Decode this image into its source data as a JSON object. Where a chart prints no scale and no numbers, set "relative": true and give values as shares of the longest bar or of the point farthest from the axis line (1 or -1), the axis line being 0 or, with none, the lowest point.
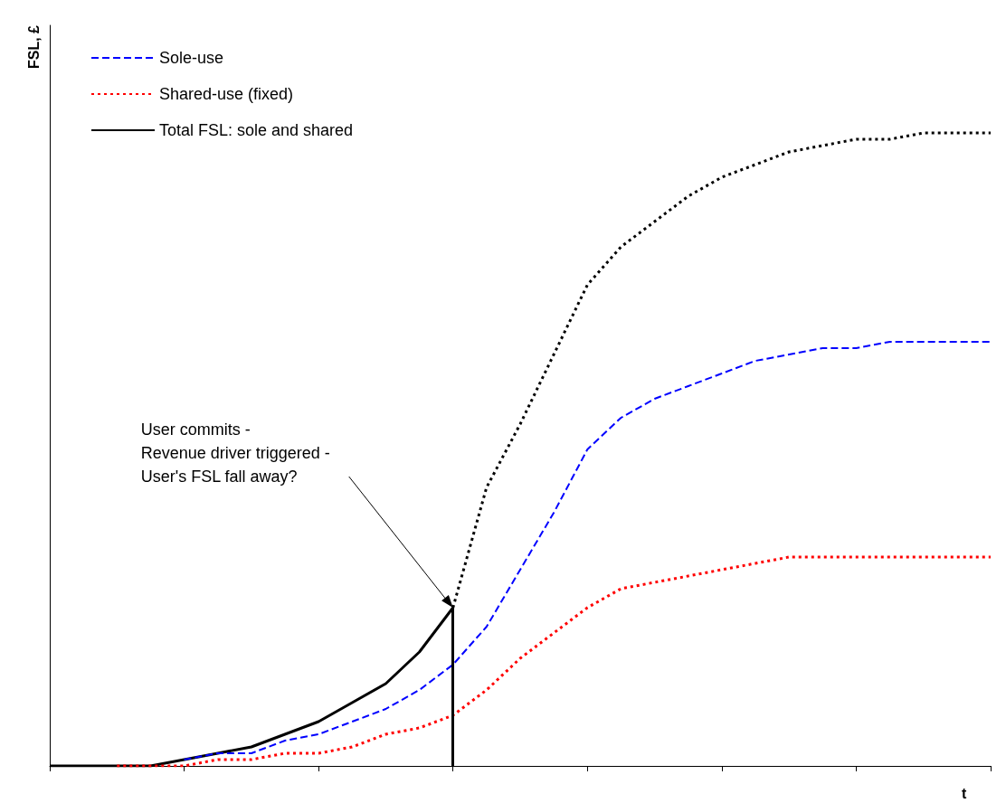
{
  "chart_data": {
    "type": "line",
    "relative": true,
    "xlabel": "t",
    "ylabel": "FSL, £",
    "categories": [
      null,
      null,
      null,
      null,
      null,
      null,
      null,
      null,
      null,
      null,
      null,
      null,
      null,
      null,
      null,
      null,
      null,
      null,
      null,
      null,
      null,
      null,
      null,
      null,
      null,
      null,
      null,
      null,
      null
    ],
    "grid": false,
    "legend": "top left",
    "marker": "none",
    "annotations": [
      "User commits -\nRevenue driver triggered -\nUser's FSL fall away?"
    ],
    "series": [
      {
        "name": "Sole-use",
        "color": "#0000ff",
        "line_style": "dashed",
        "values": [
          null,
          null,
          null,
          null,
          0.01,
          0.02,
          0.02,
          0.04,
          0.05,
          0.07,
          0.09,
          0.12,
          0.16,
          0.22,
          0.31,
          0.4,
          0.5,
          0.55,
          0.58,
          0.6,
          0.62,
          0.64,
          0.65,
          0.66,
          0.66,
          0.67,
          0.67,
          0.67,
          0.67
        ]
      },
      {
        "name": "Shared-use (fixed)",
        "color": "#ff0000",
        "line_style": "dotted",
        "values": [
          null,
          null,
          0,
          0,
          0,
          0.01,
          0.01,
          0.02,
          0.02,
          0.03,
          0.05,
          0.06,
          0.08,
          0.12,
          0.17,
          0.21,
          0.25,
          0.28,
          0.29,
          0.3,
          0.31,
          0.32,
          0.33,
          0.33,
          0.33,
          0.33,
          0.33,
          0.33,
          0.33
        ]
      },
      {
        "name": "Total FSL: sole and shared",
        "color": "#000000",
        "line_style": "solid",
        "values": [
          0,
          0,
          0,
          0,
          0.01,
          0.02,
          0.03,
          0.05,
          0.07,
          0.1,
          0.13,
          0.18,
          0.25,
          null,
          null,
          null,
          null,
          null,
          null,
          null,
          null,
          null,
          null,
          null,
          null,
          null,
          null,
          null,
          null
        ]
      },
      {
        "color": "#000000",
        "line_style": "dotted",
        "values": [
          null,
          null,
          null,
          null,
          null,
          null,
          null,
          null,
          null,
          null,
          null,
          null,
          0.25,
          0.44,
          0.54,
          0.65,
          0.76,
          0.82,
          0.86,
          0.9,
          0.93,
          0.95,
          0.97,
          0.98,
          0.99,
          0.99,
          1,
          1,
          1
        ]
      }
    ]
  }
}
